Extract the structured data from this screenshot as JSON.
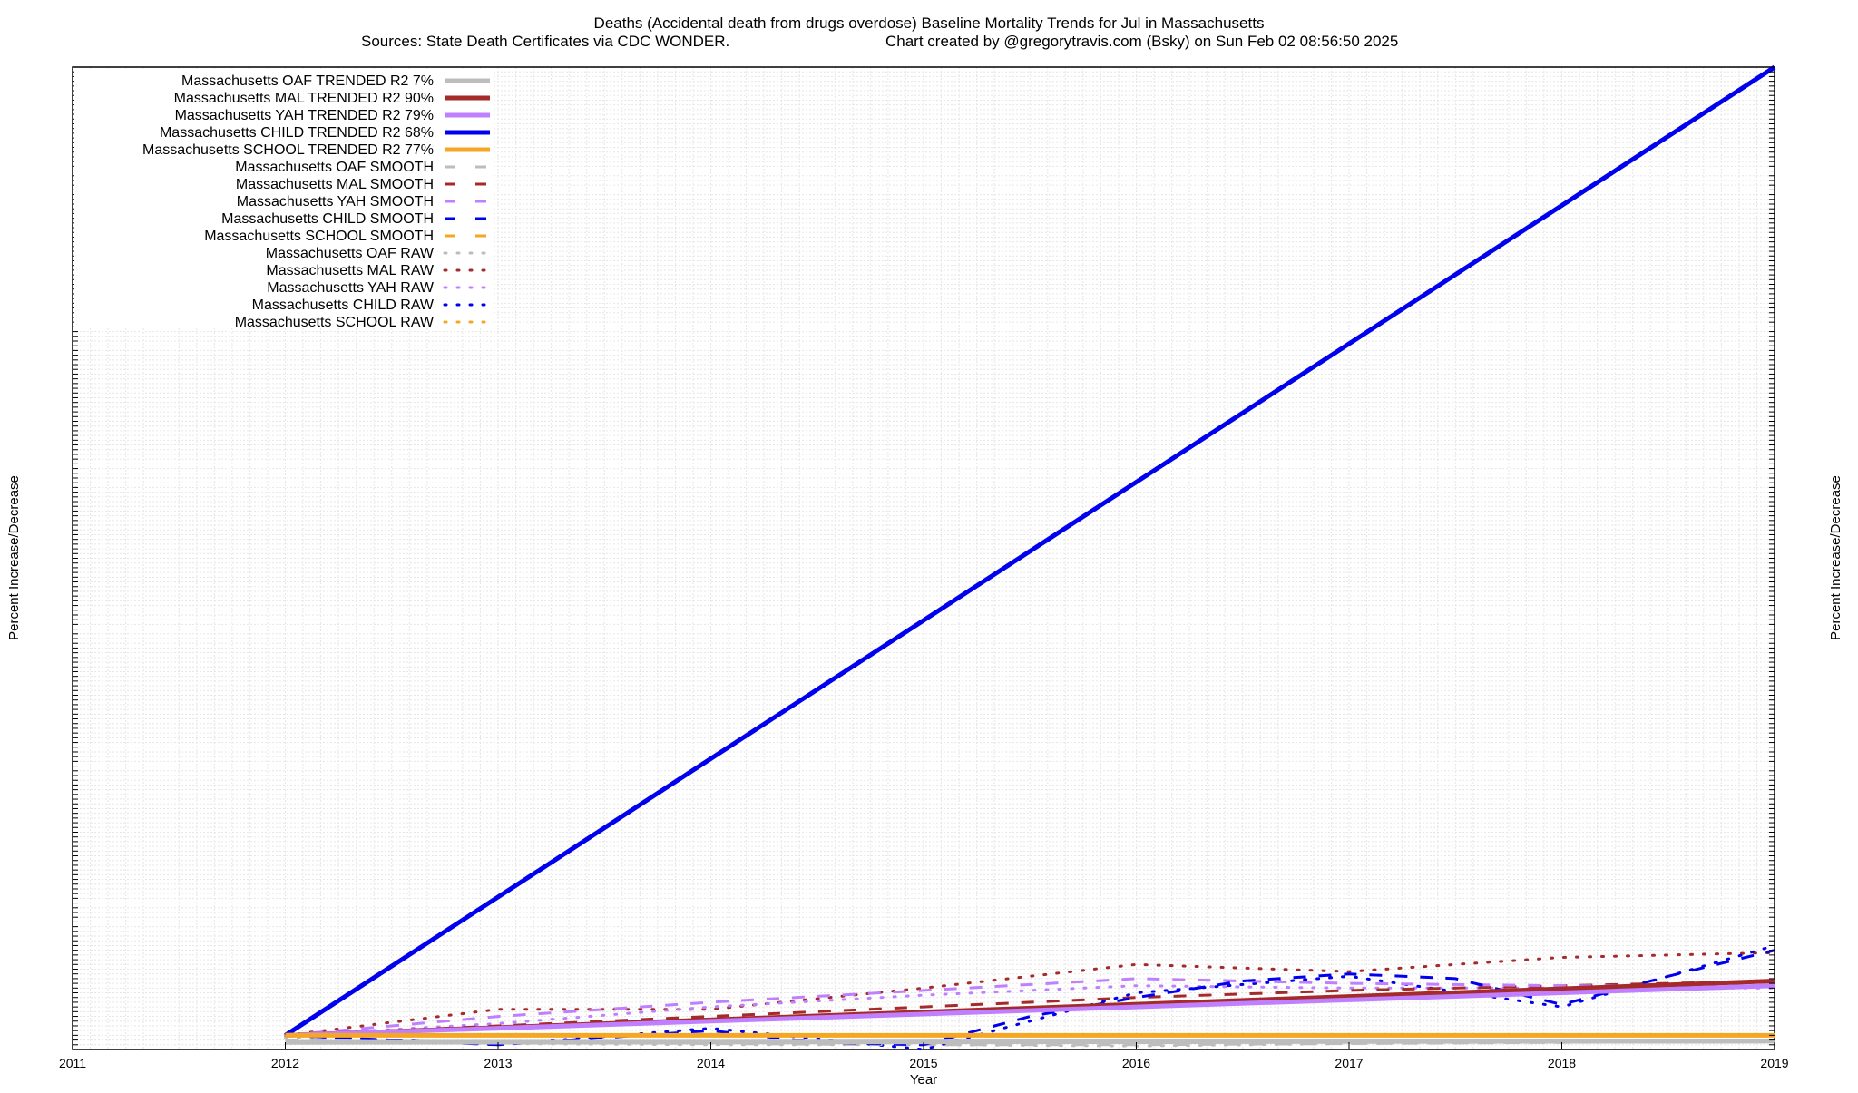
{
  "chart_data": {
    "type": "line",
    "title": "Deaths (Accidental death from drugs overdose)  Baseline Mortality Trends for Jul in Massachusetts",
    "subtitle_left": "Sources: State Death Certificates via CDC WONDER.",
    "subtitle_right": "Chart created by @gregorytravis.com (Bsky) on Sun Feb 02 08:56:50 2025",
    "xlabel": "Year",
    "ylabel": "Percent Increase/Decrease",
    "ylabel_right": "Percent Increase/Decrease",
    "xlim": [
      2011,
      2019
    ],
    "ylim": [
      -60,
      4100
    ],
    "x_ticks": [
      "2011",
      "2012",
      "2013",
      "2014",
      "2015",
      "2016",
      "2017",
      "2018",
      "2019"
    ],
    "grid": true,
    "legend_position": "top-left",
    "colors": {
      "oaf": "#bdbdbd",
      "mal": "#a52a2a",
      "yah": "#bf7fff",
      "child": "#0000ee",
      "school": "#f5a623"
    },
    "legend": [
      {
        "label": "Massachusetts OAF TRENDED R2  7%",
        "series": "oaf",
        "style": "trend"
      },
      {
        "label": "Massachusetts MAL TRENDED R2  90%",
        "series": "mal",
        "style": "trend"
      },
      {
        "label": "Massachusetts YAH TRENDED R2  79%",
        "series": "yah",
        "style": "trend"
      },
      {
        "label": "Massachusetts CHILD TRENDED R2  68%",
        "series": "child",
        "style": "trend"
      },
      {
        "label": "Massachusetts SCHOOL TRENDED R2  77%",
        "series": "school",
        "style": "trend"
      },
      {
        "label": "Massachusetts OAF SMOOTH",
        "series": "oaf",
        "style": "smooth"
      },
      {
        "label": "Massachusetts MAL SMOOTH",
        "series": "mal",
        "style": "smooth"
      },
      {
        "label": "Massachusetts YAH SMOOTH",
        "series": "yah",
        "style": "smooth"
      },
      {
        "label": "Massachusetts CHILD SMOOTH",
        "series": "child",
        "style": "smooth"
      },
      {
        "label": "Massachusetts SCHOOL SMOOTH",
        "series": "school",
        "style": "smooth"
      },
      {
        "label": "Massachusetts OAF RAW",
        "series": "oaf",
        "style": "raw"
      },
      {
        "label": "Massachusetts MAL RAW",
        "series": "mal",
        "style": "raw"
      },
      {
        "label": "Massachusetts YAH RAW",
        "series": "yah",
        "style": "raw"
      },
      {
        "label": "Massachusetts CHILD RAW",
        "series": "child",
        "style": "raw"
      },
      {
        "label": "Massachusetts SCHOOL RAW",
        "series": "school",
        "style": "raw"
      }
    ],
    "series": [
      {
        "name": "Massachusetts CHILD TRENDED R2  68%",
        "key": "child",
        "style": "trend",
        "x": [
          2012,
          2019
        ],
        "y": [
          0,
          4100
        ]
      },
      {
        "name": "Massachusetts MAL TRENDED R2  90%",
        "key": "mal",
        "style": "trend",
        "x": [
          2012,
          2019
        ],
        "y": [
          0,
          230
        ]
      },
      {
        "name": "Massachusetts YAH TRENDED R2  79%",
        "key": "yah",
        "style": "trend",
        "x": [
          2012,
          2019
        ],
        "y": [
          0,
          210
        ]
      },
      {
        "name": "Massachusetts OAF TRENDED R2  7%",
        "key": "oaf",
        "style": "trend",
        "x": [
          2012,
          2019
        ],
        "y": [
          -30,
          -25
        ]
      },
      {
        "name": "Massachusetts SCHOOL TRENDED R2  77%",
        "key": "school",
        "style": "trend",
        "x": [
          2012,
          2019
        ],
        "y": [
          0,
          0
        ]
      },
      {
        "name": "Massachusetts OAF SMOOTH",
        "key": "oaf",
        "style": "smooth",
        "x": [
          2012,
          2013,
          2014,
          2015,
          2016,
          2017,
          2018,
          2019
        ],
        "y": [
          -20,
          -30,
          -35,
          -40,
          -40,
          -35,
          -30,
          -25
        ]
      },
      {
        "name": "Massachusetts MAL SMOOTH",
        "key": "mal",
        "style": "smooth",
        "x": [
          2012,
          2013,
          2014,
          2015,
          2016,
          2017,
          2018,
          2019
        ],
        "y": [
          0,
          40,
          80,
          120,
          160,
          190,
          210,
          230
        ]
      },
      {
        "name": "Massachusetts YAH SMOOTH",
        "key": "yah",
        "style": "smooth",
        "x": [
          2012,
          2013,
          2014,
          2015,
          2016,
          2017,
          2018,
          2019
        ],
        "y": [
          0,
          80,
          140,
          190,
          240,
          220,
          210,
          210
        ]
      },
      {
        "name": "Massachusetts CHILD SMOOTH",
        "key": "child",
        "style": "smooth",
        "x": [
          2012,
          2013,
          2014,
          2014.5,
          2015,
          2015.5,
          2016,
          2016.5,
          2017,
          2017.5,
          2018,
          2018.5,
          2019
        ],
        "y": [
          0,
          -40,
          20,
          -30,
          -40,
          80,
          160,
          230,
          260,
          240,
          130,
          250,
          360
        ]
      },
      {
        "name": "Massachusetts SCHOOL SMOOTH",
        "key": "school",
        "style": "smooth",
        "x": [
          2012,
          2013,
          2014,
          2015,
          2016,
          2017,
          2018,
          2019
        ],
        "y": [
          0,
          0,
          0,
          0,
          0,
          0,
          0,
          0
        ]
      },
      {
        "name": "Massachusetts OAF RAW",
        "key": "oaf",
        "style": "raw",
        "x": [
          2012,
          2013,
          2014,
          2015,
          2016,
          2017,
          2018,
          2019
        ],
        "y": [
          -10,
          -35,
          -40,
          -40,
          -45,
          -35,
          -30,
          -20
        ]
      },
      {
        "name": "Massachusetts MAL RAW",
        "key": "mal",
        "style": "raw",
        "x": [
          2012,
          2013,
          2014,
          2015,
          2016,
          2017,
          2018,
          2019
        ],
        "y": [
          0,
          110,
          110,
          200,
          300,
          270,
          330,
          350
        ]
      },
      {
        "name": "Massachusetts YAH RAW",
        "key": "yah",
        "style": "raw",
        "x": [
          2012,
          2013,
          2014,
          2015,
          2016,
          2017,
          2018,
          2019
        ],
        "y": [
          0,
          50,
          120,
          170,
          210,
          200,
          200,
          200
        ]
      },
      {
        "name": "Massachusetts CHILD RAW",
        "key": "child",
        "style": "raw",
        "x": [
          2012,
          2013,
          2014,
          2015,
          2016,
          2017,
          2018,
          2019
        ],
        "y": [
          0,
          -40,
          30,
          -60,
          180,
          250,
          120,
          380
        ]
      },
      {
        "name": "Massachusetts SCHOOL RAW",
        "key": "school",
        "style": "raw",
        "x": [
          2012,
          2013,
          2014,
          2015,
          2016,
          2017,
          2018,
          2019
        ],
        "y": [
          0,
          0,
          0,
          0,
          0,
          0,
          0,
          0
        ]
      }
    ]
  }
}
